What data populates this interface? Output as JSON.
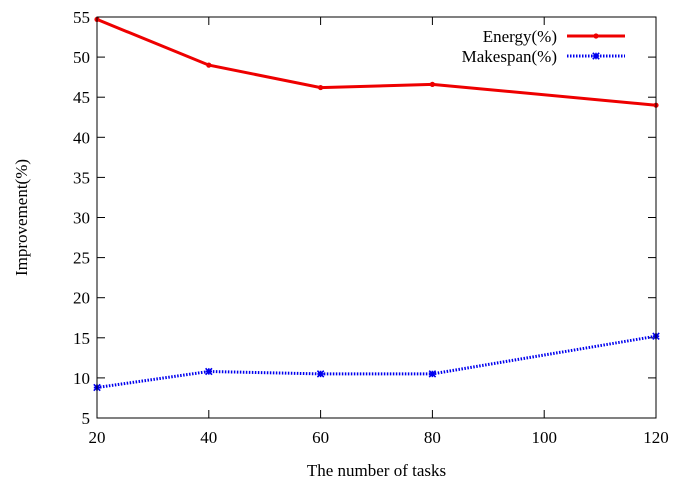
{
  "chart_data": {
    "type": "line",
    "title": "",
    "xlabel": "The number of tasks",
    "ylabel": "Improvement(%)",
    "x": [
      20,
      40,
      60,
      80,
      120
    ],
    "xlim": [
      20,
      120
    ],
    "xticks": [
      20,
      40,
      60,
      80,
      100,
      120
    ],
    "ylim": [
      5,
      55
    ],
    "yticks": [
      5,
      10,
      15,
      20,
      25,
      30,
      35,
      40,
      45,
      50,
      55
    ],
    "grid": false,
    "legend_position": "top-right",
    "series": [
      {
        "name": "Energy(%)",
        "values": [
          54.7,
          49.0,
          46.2,
          46.6,
          44.0
        ],
        "color": "#ee0000",
        "line_style": "solid",
        "marker": "dot"
      },
      {
        "name": "Makespan(%)",
        "values": [
          8.8,
          10.8,
          10.5,
          10.5,
          15.2
        ],
        "color": "#0000ee",
        "line_style": "dotted",
        "marker": "star"
      }
    ]
  }
}
